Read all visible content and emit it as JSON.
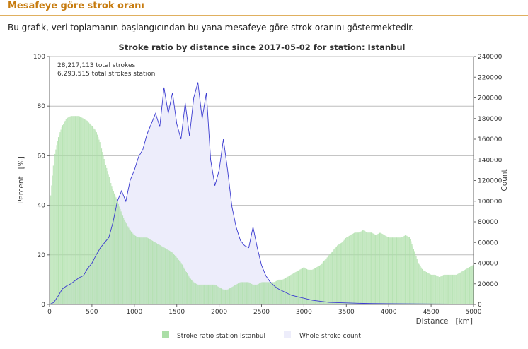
{
  "page": {
    "heading": "Mesafeye göre strok oranı",
    "description": "Bu grafik, veri toplamanın başlangıcından bu yana mesafeye göre strok oranını göstermektedir."
  },
  "chart_data": {
    "type": "area",
    "title": "Stroke ratio by distance since 2017-05-02 for station: Istanbul",
    "xlabel": "Distance   [km]",
    "ylabel_left": "Percent   [%]",
    "ylabel_right": "Count",
    "xlim": [
      0,
      5000
    ],
    "ylim_left": [
      0,
      100
    ],
    "ylim_right": [
      0,
      240000
    ],
    "xticks": [
      "0",
      "500",
      "1000",
      "1500",
      "2000",
      "2500",
      "3000",
      "3500",
      "4000",
      "4500",
      "5000"
    ],
    "yticks_left": [
      "0",
      "20",
      "40",
      "60",
      "80",
      "100"
    ],
    "yticks_right": [
      "0",
      "20000",
      "40000",
      "60000",
      "80000",
      "100000",
      "120000",
      "140000",
      "160000",
      "180000",
      "200000",
      "220000",
      "240000"
    ],
    "annotations": [
      "28,217,113 total strokes",
      "6,293,515 total strokes station"
    ],
    "grid": true,
    "legend_position": "bottom",
    "colors": {
      "ratio": "#aadea6",
      "ratio_edge": "#82c97c",
      "count_fill": "#ededfb",
      "count_line": "#3a3ad0"
    },
    "series": [
      {
        "name": "Stroke ratio station Istanbul",
        "axis": "left",
        "x": [
          0,
          50,
          100,
          150,
          200,
          250,
          300,
          350,
          400,
          450,
          500,
          550,
          600,
          650,
          700,
          750,
          800,
          850,
          900,
          950,
          1000,
          1050,
          1100,
          1150,
          1200,
          1250,
          1300,
          1350,
          1400,
          1450,
          1500,
          1550,
          1600,
          1650,
          1700,
          1750,
          1800,
          1850,
          1900,
          1950,
          2000,
          2050,
          2100,
          2150,
          2200,
          2250,
          2300,
          2350,
          2400,
          2450,
          2500,
          2550,
          2600,
          2650,
          2700,
          2750,
          2800,
          2850,
          2900,
          2950,
          3000,
          3050,
          3100,
          3150,
          3200,
          3250,
          3300,
          3350,
          3400,
          3450,
          3500,
          3550,
          3600,
          3650,
          3700,
          3750,
          3800,
          3850,
          3900,
          3950,
          4000,
          4050,
          4100,
          4150,
          4200,
          4250,
          4300,
          4350,
          4400,
          4450,
          4500,
          4550,
          4600,
          4650,
          4700,
          4750,
          4800,
          4850,
          4900,
          4950,
          5000
        ],
        "values": [
          38,
          58,
          67,
          72,
          75,
          76,
          76,
          76,
          75,
          74,
          72,
          70,
          65,
          58,
          52,
          46,
          42,
          37,
          33,
          30,
          28,
          27,
          27,
          27,
          26,
          25,
          24,
          23,
          22,
          21,
          19,
          17,
          14,
          11,
          9,
          8,
          8,
          8,
          8,
          8,
          7,
          6,
          6,
          7,
          8,
          9,
          9,
          9,
          8,
          8,
          9,
          9,
          9,
          9,
          10,
          10,
          11,
          12,
          13,
          14,
          15,
          14,
          14,
          15,
          16,
          18,
          20,
          22,
          24,
          25,
          27,
          28,
          29,
          29,
          30,
          29,
          29,
          28,
          29,
          28,
          27,
          27,
          27,
          27,
          28,
          27,
          22,
          17,
          14,
          13,
          12,
          12,
          11,
          12,
          12,
          12,
          12,
          13,
          14,
          15,
          16
        ]
      },
      {
        "name": "Whole stroke count",
        "axis": "right",
        "x": [
          0,
          50,
          100,
          150,
          200,
          250,
          300,
          350,
          400,
          450,
          500,
          550,
          600,
          650,
          700,
          750,
          800,
          850,
          900,
          950,
          1000,
          1050,
          1100,
          1150,
          1200,
          1250,
          1300,
          1350,
          1400,
          1450,
          1500,
          1550,
          1600,
          1650,
          1700,
          1750,
          1800,
          1850,
          1900,
          1950,
          2000,
          2050,
          2100,
          2150,
          2200,
          2250,
          2300,
          2350,
          2400,
          2450,
          2500,
          2550,
          2600,
          2650,
          2700,
          2750,
          2800,
          2850,
          2900,
          2950,
          3000,
          3100,
          3200,
          3300,
          3400,
          3500,
          3600,
          3700,
          3800,
          3900,
          4000,
          4500,
          5000
        ],
        "values": [
          0,
          2000,
          8000,
          15000,
          18000,
          20000,
          23000,
          26000,
          28000,
          35000,
          40000,
          48000,
          55000,
          60000,
          65000,
          80000,
          100000,
          110000,
          100000,
          120000,
          130000,
          143000,
          150000,
          165000,
          175000,
          185000,
          172000,
          210000,
          185000,
          205000,
          175000,
          160000,
          195000,
          163000,
          200000,
          215000,
          180000,
          205000,
          140000,
          115000,
          130000,
          160000,
          130000,
          95000,
          75000,
          62000,
          57000,
          55000,
          75000,
          55000,
          38000,
          28000,
          22000,
          18000,
          15000,
          13000,
          11000,
          9000,
          8000,
          7000,
          6000,
          4000,
          3000,
          2000,
          1800,
          1500,
          1200,
          1000,
          900,
          800,
          700,
          500,
          300
        ]
      }
    ]
  }
}
